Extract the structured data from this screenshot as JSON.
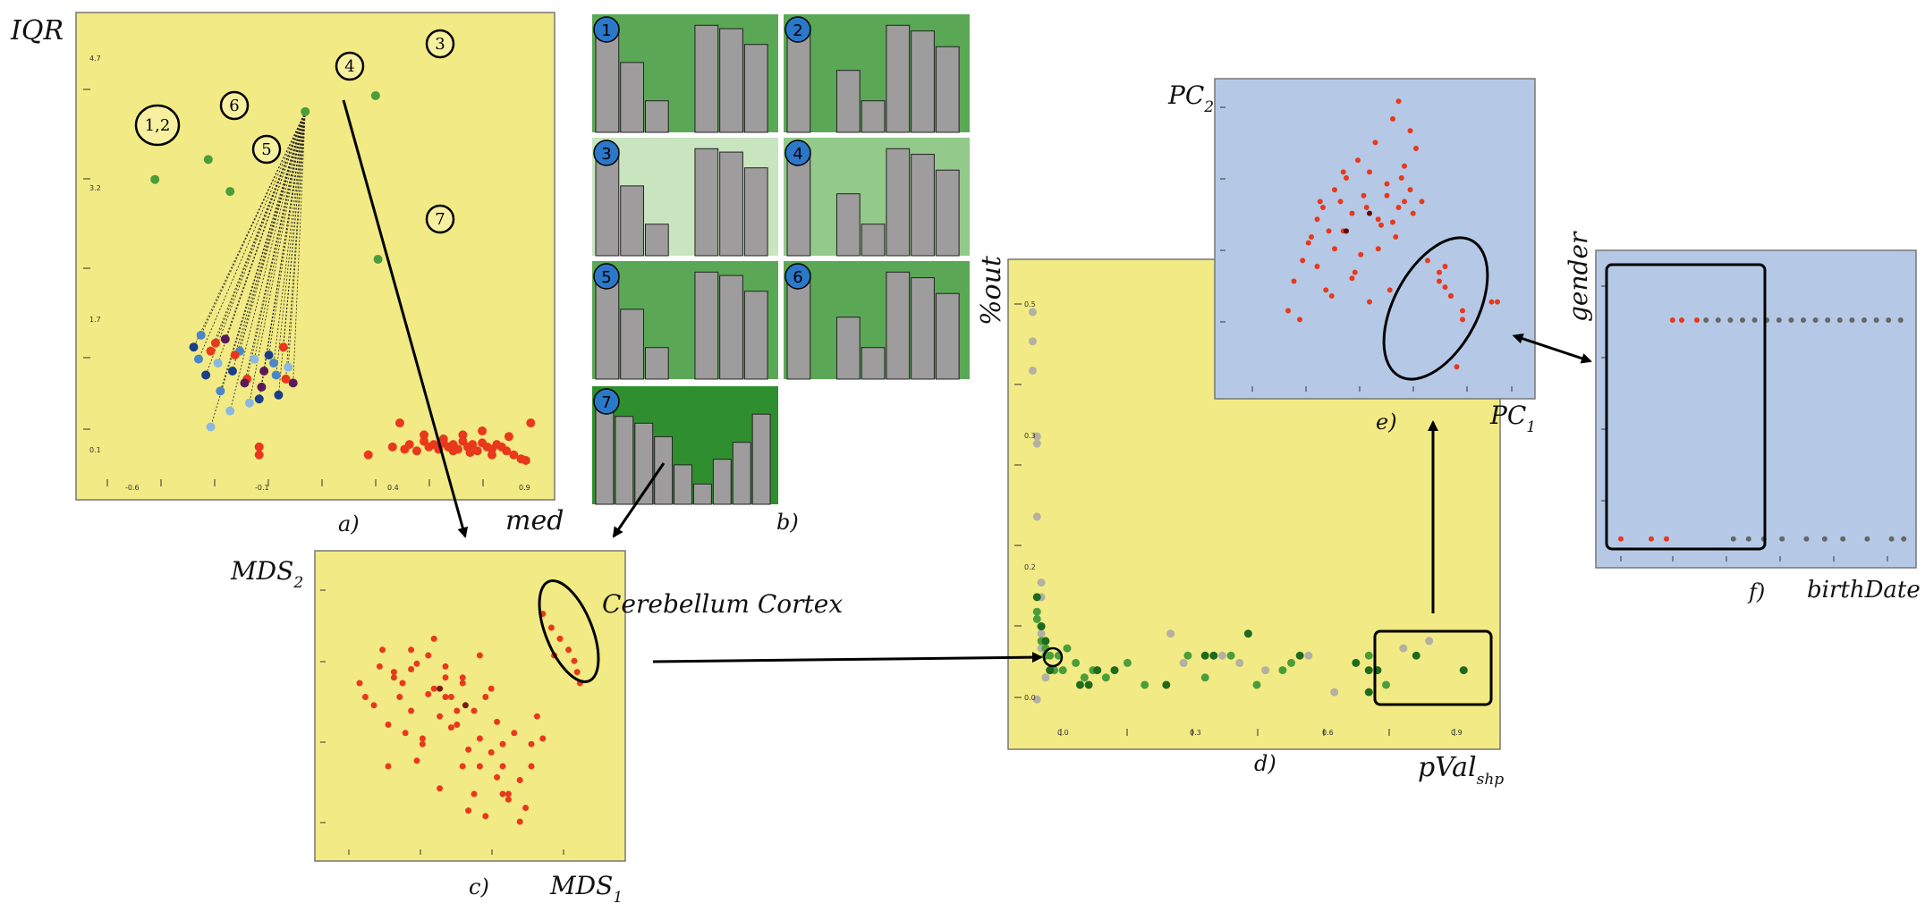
{
  "colors": {
    "yellow_panel": "#f2ea84",
    "blue_panel": "#b5c9e6",
    "red_point": "#e8391c",
    "dark_green": "#1e6b1e",
    "mid_green": "#4a9e3a",
    "gray_point": "#b3b0a4",
    "bar_gray": "#9e9c9c",
    "green_bg": "#5aa855",
    "light_green_bg": "#c9e5c0",
    "badge_blue": "#2b78c8"
  },
  "annotation_icons": [
    "ellipse-highlight",
    "rectangle-highlight",
    "arrow"
  ],
  "panel_a": {
    "caption": "a)",
    "xlabel": "med",
    "ylabel": "IQR",
    "xticks": [
      "-0.6",
      "-0.1",
      "0.4",
      "0.9"
    ],
    "yticks": [
      "4.7",
      "3.2",
      "1.7",
      "0.1"
    ],
    "callouts": [
      "1,2",
      "6",
      "5",
      "4",
      "3",
      "7"
    ]
  },
  "panel_b": {
    "caption": "b)",
    "badges": [
      "1",
      "2",
      "3",
      "4",
      "5",
      "6",
      "7"
    ]
  },
  "panel_c": {
    "caption": "c)",
    "xlabel": "MDS",
    "xlabel_sub": "1",
    "ylabel": "MDS",
    "ylabel_sub": "2",
    "annotation": "Cerebellum Cortex"
  },
  "panel_d": {
    "caption": "d)",
    "xlabel": "pVal",
    "xlabel_sub": "shp",
    "ylabel": "%out",
    "xticks": [
      "0.0",
      "0.3",
      "0.6",
      "0.9"
    ],
    "yticks": [
      "0.5",
      "0.3",
      "0.2",
      "0.0"
    ]
  },
  "panel_e": {
    "caption": "e)",
    "xlabel": "PC",
    "xlabel_sub": "1",
    "ylabel": "PC",
    "ylabel_sub": "2"
  },
  "panel_f": {
    "caption": "f)",
    "xlabel": "birthDate",
    "ylabel": "gender"
  },
  "chart_data": [
    {
      "type": "scatter",
      "panel": "a",
      "xlabel": "med",
      "ylabel": "IQR",
      "xlim": [
        -0.8,
        1.1
      ],
      "ylim": [
        -0.3,
        5.3
      ],
      "series": [
        {
          "color": "#e8391c",
          "x": [
            0.35,
            0.45,
            0.5,
            0.52,
            0.55,
            0.58,
            0.6,
            0.62,
            0.64,
            0.66,
            0.68,
            0.7,
            0.72,
            0.74,
            0.76,
            0.78,
            0.8,
            0.82,
            0.84,
            0.86,
            0.88,
            0.9,
            0.92,
            0.95,
            0.98,
            1.0,
            0.48,
            0.58,
            0.66,
            0.74,
            0.82,
            0.93,
            1.02,
            0.7,
            0.77,
            0.86
          ],
          "y": [
            0.05,
            0.15,
            0.12,
            0.18,
            0.1,
            0.22,
            0.15,
            0.18,
            0.12,
            0.2,
            0.15,
            0.18,
            0.12,
            0.22,
            0.15,
            0.18,
            0.1,
            0.2,
            0.15,
            0.12,
            0.18,
            0.15,
            0.1,
            0.05,
            0.0,
            -0.02,
            0.45,
            0.3,
            0.25,
            0.3,
            0.35,
            0.28,
            0.45,
            0.1,
            0.08,
            0.05
          ]
        },
        {
          "color": "#e8391c",
          "x": [
            -0.1,
            -0.1
          ],
          "y": [
            0.15,
            0.05
          ]
        },
        {
          "color": "#4a9e3a",
          "x": [
            -0.53,
            -0.31,
            -0.22,
            0.09,
            0.38,
            0.39
          ],
          "y": [
            3.5,
            3.75,
            3.35,
            4.35,
            4.55,
            2.5
          ]
        },
        {
          "color": "#1a3f8a",
          "x": [
            -0.37,
            -0.34,
            -0.3,
            -0.27,
            -0.24,
            -0.21,
            -0.18,
            -0.15,
            -0.12,
            -0.09,
            -0.06,
            -0.03,
            0.0,
            0.02,
            0.04,
            -0.32,
            -0.26,
            -0.2,
            -0.14,
            -0.08,
            -0.02,
            -0.35,
            -0.28,
            -0.22,
            -0.16,
            -0.1,
            -0.04,
            0.01,
            -0.3
          ],
          "y": [
            1.4,
            1.55,
            1.35,
            1.2,
            1.5,
            1.1,
            1.35,
            1.0,
            1.25,
            0.9,
            1.3,
            1.05,
            1.4,
            1.15,
            0.95,
            1.05,
            0.85,
            1.3,
            0.7,
            1.1,
            0.8,
            1.25,
            1.45,
            0.6,
            0.95,
            0.75,
            1.2,
            1.0,
            0.4
          ]
        }
      ],
      "highlight_links_from": {
        "x": 0.09,
        "y": 4.35
      }
    },
    {
      "type": "bar",
      "panel": "b",
      "small_multiples": [
        {
          "id": "1",
          "values": [
            0.95,
            0.62,
            0.28,
            0.0,
            0.95,
            0.92,
            0.78
          ]
        },
        {
          "id": "2",
          "values": [
            0.95,
            0.0,
            0.55,
            0.28,
            0.95,
            0.9,
            0.76
          ]
        },
        {
          "id": "3",
          "values": [
            0.95,
            0.62,
            0.28,
            0.0,
            0.95,
            0.92,
            0.78
          ]
        },
        {
          "id": "4",
          "values": [
            0.95,
            0.0,
            0.55,
            0.28,
            0.95,
            0.9,
            0.76
          ]
        },
        {
          "id": "5",
          "values": [
            0.95,
            0.62,
            0.28,
            0.0,
            0.95,
            0.92,
            0.78
          ]
        },
        {
          "id": "6",
          "values": [
            0.95,
            0.0,
            0.55,
            0.28,
            0.95,
            0.9,
            0.76
          ]
        },
        {
          "id": "7",
          "values": [
            0.88,
            0.78,
            0.72,
            0.6,
            0.35,
            0.18,
            0.4,
            0.55,
            0.8
          ]
        }
      ]
    },
    {
      "type": "scatter",
      "panel": "c",
      "xlabel": "MDS1",
      "ylabel": "MDS2",
      "xlim": [
        0,
        1
      ],
      "ylim": [
        0,
        1
      ],
      "series": [
        {
          "color": "#e8391c",
          "x": [
            0.1,
            0.12,
            0.15,
            0.18,
            0.2,
            0.22,
            0.25,
            0.28,
            0.3,
            0.32,
            0.34,
            0.36,
            0.38,
            0.4,
            0.42,
            0.44,
            0.46,
            0.48,
            0.5,
            0.52,
            0.54,
            0.56,
            0.58,
            0.6,
            0.62,
            0.64,
            0.66,
            0.68,
            0.7,
            0.72,
            0.74,
            0.22,
            0.26,
            0.3,
            0.34,
            0.38,
            0.42,
            0.46,
            0.5,
            0.54,
            0.58,
            0.62,
            0.66,
            0.7,
            0.36,
            0.4,
            0.44,
            0.48,
            0.52,
            0.56,
            0.6,
            0.2,
            0.24,
            0.28,
            0.32,
            0.17,
            0.28,
            0.4,
            0.46,
            0.52,
            0.6
          ],
          "y": [
            0.6,
            0.55,
            0.52,
            0.72,
            0.45,
            0.62,
            0.6,
            0.5,
            0.67,
            0.4,
            0.7,
            0.58,
            0.48,
            0.66,
            0.55,
            0.45,
            0.62,
            0.36,
            0.5,
            0.4,
            0.55,
            0.35,
            0.46,
            0.3,
            0.2,
            0.42,
            0.25,
            0.15,
            0.38,
            0.48,
            0.4,
            0.64,
            0.42,
            0.32,
            0.56,
            0.22,
            0.44,
            0.3,
            0.2,
            0.12,
            0.26,
            0.18,
            0.1,
            0.3,
            0.76,
            0.62,
            0.5,
            0.14,
            0.3,
            0.58,
            0.2,
            0.3,
            0.55,
            0.65,
            0.38,
            0.66,
            0.72,
            0.55,
            0.6,
            0.7,
            0.38
          ]
        },
        {
          "color": "#7a1a10",
          "x": [
            0.38,
            0.47
          ],
          "y": [
            0.58,
            0.52
          ]
        },
        {
          "color": "#e8391c",
          "name": "Cerebellum Cortex",
          "x": [
            0.74,
            0.77,
            0.8,
            0.83,
            0.85,
            0.87,
            0.78,
            0.86
          ],
          "y": [
            0.85,
            0.8,
            0.76,
            0.72,
            0.68,
            0.6,
            0.7,
            0.64
          ]
        }
      ]
    },
    {
      "type": "scatter",
      "panel": "d",
      "xlabel": "pValshp",
      "ylabel": "%out",
      "xlim": [
        -0.05,
        1.05
      ],
      "ylim": [
        -0.05,
        0.58
      ],
      "series": [
        {
          "color": "#b3b0a4",
          "x": [
            -0.02,
            -0.02,
            -0.02,
            -0.01,
            -0.01,
            -0.01,
            0.0,
            0.0,
            0.0,
            0.0,
            0.01,
            0.3,
            0.33,
            0.42,
            0.46,
            0.52,
            0.62,
            0.68,
            0.84,
            0.9,
            -0.01
          ],
          "y": [
            0.52,
            0.48,
            0.44,
            0.35,
            0.34,
            0.24,
            0.15,
            0.13,
            0.08,
            0.06,
            0.02,
            0.08,
            0.04,
            0.05,
            0.04,
            0.03,
            0.05,
            0.0,
            0.06,
            0.07,
            -0.01
          ]
        },
        {
          "color": "#4a9e3a",
          "x": [
            -0.01,
            -0.01,
            0.0,
            0.0,
            0.01,
            0.01,
            0.02,
            0.03,
            0.04,
            0.05,
            0.06,
            0.08,
            0.1,
            0.12,
            0.15,
            0.2,
            0.24,
            0.34,
            0.38,
            0.44,
            0.5,
            0.56,
            0.58,
            0.76,
            0.8
          ],
          "y": [
            0.11,
            0.1,
            0.09,
            0.07,
            0.06,
            0.05,
            0.05,
            0.03,
            0.05,
            0.03,
            0.06,
            0.04,
            0.02,
            0.03,
            0.02,
            0.04,
            0.01,
            0.05,
            0.02,
            0.05,
            0.01,
            0.03,
            0.04,
            0.05,
            0.01
          ]
        },
        {
          "color": "#1e6b1e",
          "x": [
            -0.01,
            0.0,
            0.01,
            0.02,
            0.09,
            0.11,
            0.13,
            0.17,
            0.29,
            0.38,
            0.4,
            0.48,
            0.6,
            0.73,
            0.76,
            0.78,
            0.87,
            0.98,
            0.76
          ],
          "y": [
            0.13,
            0.09,
            0.07,
            0.03,
            0.01,
            0.01,
            0.03,
            0.03,
            0.01,
            0.05,
            0.05,
            0.08,
            0.05,
            0.04,
            0.03,
            0.03,
            0.05,
            0.03,
            0.0
          ]
        }
      ]
    },
    {
      "type": "scatter",
      "panel": "e",
      "xlabel": "PC1",
      "ylabel": "PC2",
      "xlim": [
        0,
        1
      ],
      "ylim": [
        0,
        1
      ],
      "series": [
        {
          "color": "#e8391c",
          "x": [
            0.2,
            0.22,
            0.25,
            0.28,
            0.3,
            0.32,
            0.34,
            0.36,
            0.38,
            0.4,
            0.42,
            0.44,
            0.46,
            0.48,
            0.5,
            0.52,
            0.54,
            0.56,
            0.58,
            0.6,
            0.62,
            0.64,
            0.66,
            0.3,
            0.33,
            0.36,
            0.39,
            0.42,
            0.45,
            0.48,
            0.51,
            0.54,
            0.57,
            0.24,
            0.27,
            0.31,
            0.35,
            0.39,
            0.43,
            0.47,
            0.51,
            0.55,
            0.59,
            0.63,
            0.58,
            0.62,
            0.68,
            0.72,
            0.76,
            0.8,
            0.74,
            0.9,
            0.56,
            0.6
          ],
          "y": [
            0.25,
            0.35,
            0.42,
            0.5,
            0.56,
            0.6,
            0.52,
            0.66,
            0.62,
            0.7,
            0.58,
            0.76,
            0.64,
            0.72,
            0.82,
            0.54,
            0.68,
            0.9,
            0.6,
            0.74,
            0.66,
            0.8,
            0.62,
            0.4,
            0.32,
            0.46,
            0.52,
            0.36,
            0.44,
            0.28,
            0.56,
            0.64,
            0.5,
            0.22,
            0.48,
            0.62,
            0.3,
            0.72,
            0.38,
            0.6,
            0.46,
            0.32,
            0.7,
            0.58,
            0.96,
            0.86,
            0.42,
            0.35,
            0.3,
            0.22,
            0.4,
            0.28,
            0.55,
            0.62
          ]
        },
        {
          "color": "#e8391c",
          "x": [
            0.72,
            0.76,
            0.8,
            0.74,
            0.78,
            0.92
          ],
          "y": [
            0.38,
            0.3,
            0.25,
            0.33,
            0.06,
            0.28
          ]
        },
        {
          "color": "#5a0c08",
          "x": [
            0.4,
            0.48
          ],
          "y": [
            0.52,
            0.58
          ]
        }
      ]
    },
    {
      "type": "scatter",
      "panel": "f",
      "xlabel": "birthDate",
      "ylabel": "gender",
      "xlim": [
        0,
        1
      ],
      "ylim": [
        0,
        1
      ],
      "series": [
        {
          "color": "#e8391c",
          "x": [
            0.22,
            0.25,
            0.3,
            0.05,
            0.15,
            0.2
          ],
          "y": [
            0.8,
            0.8,
            0.8,
            0.08,
            0.08,
            0.08
          ]
        },
        {
          "color": "#666666",
          "x": [
            0.33,
            0.37,
            0.41,
            0.45,
            0.49,
            0.53,
            0.57,
            0.61,
            0.65,
            0.69,
            0.73,
            0.77,
            0.81,
            0.85,
            0.89,
            0.93,
            0.97,
            0.42,
            0.47,
            0.52,
            0.58,
            0.66,
            0.72,
            0.78,
            0.86,
            0.94,
            0.98
          ],
          "y": [
            0.8,
            0.8,
            0.8,
            0.8,
            0.8,
            0.8,
            0.8,
            0.8,
            0.8,
            0.8,
            0.8,
            0.8,
            0.8,
            0.8,
            0.8,
            0.8,
            0.8,
            0.08,
            0.08,
            0.08,
            0.08,
            0.08,
            0.08,
            0.08,
            0.08,
            0.08,
            0.08
          ]
        }
      ]
    }
  ]
}
